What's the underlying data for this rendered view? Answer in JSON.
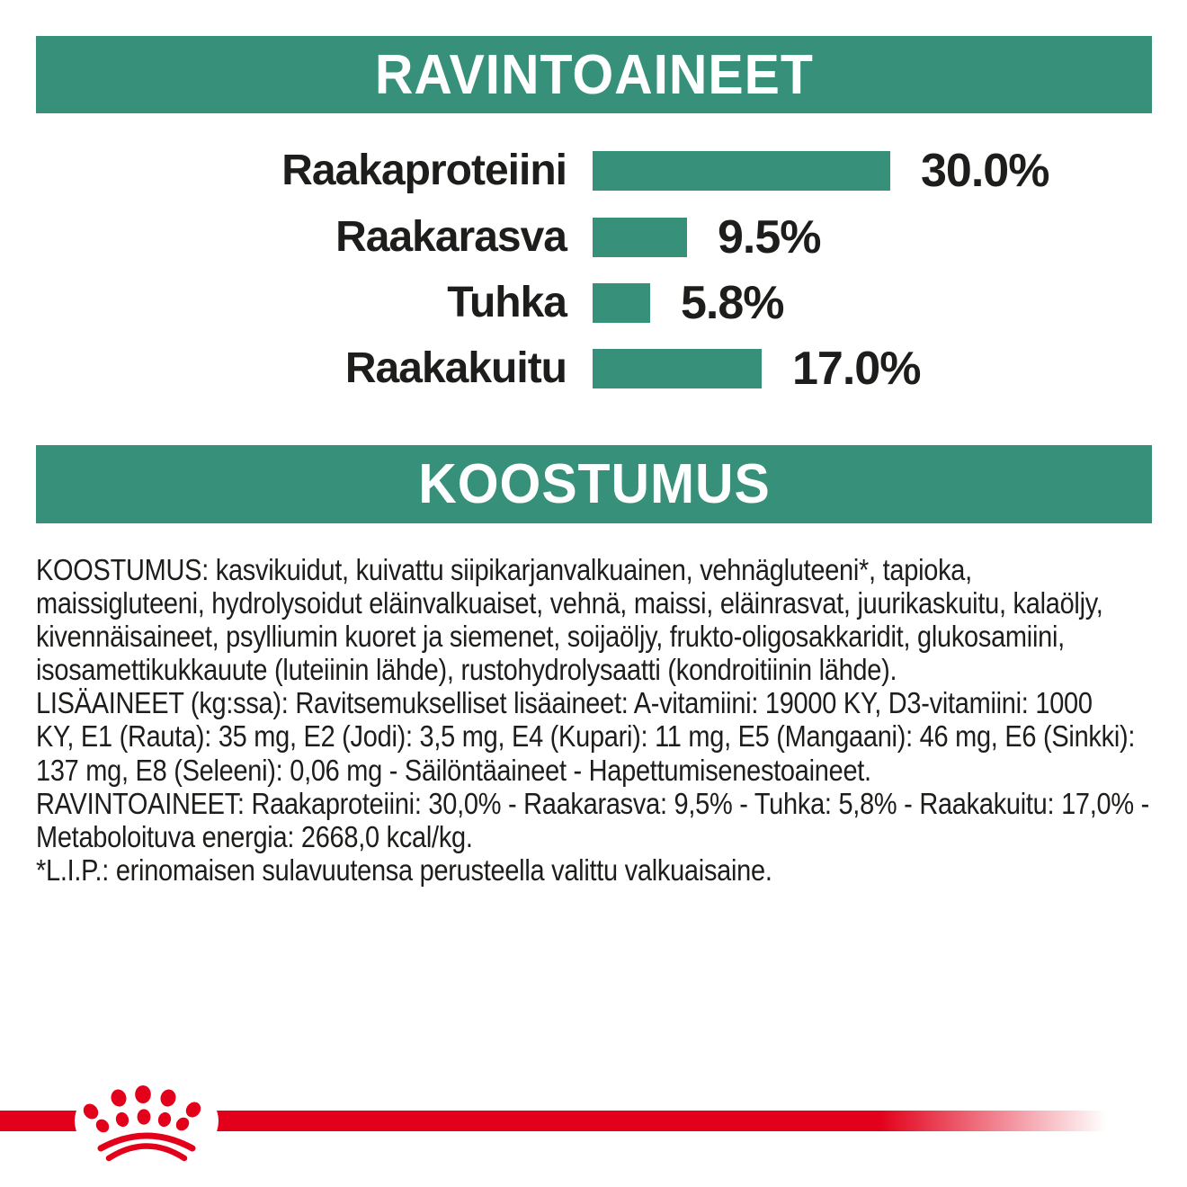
{
  "colors": {
    "brand_green": "#37907a",
    "brand_red": "#e2001a",
    "text": "#1d1d1b",
    "background": "#ffffff"
  },
  "headers": {
    "nutrients": "RAVINTOAINEET",
    "composition": "KOOSTUMUS"
  },
  "chart_data": {
    "type": "bar",
    "orientation": "horizontal",
    "categories": [
      "Raakaproteiini",
      "Raakarasva",
      "Tuhka",
      "Raakakuitu"
    ],
    "values": [
      30.0,
      9.5,
      5.8,
      17.0
    ],
    "value_labels": [
      "30.0%",
      "9.5%",
      "5.8%",
      "17.0%"
    ],
    "unit": "%",
    "xlim": [
      0,
      30
    ],
    "bar_color": "#37907a",
    "grid": false,
    "legend": "none"
  },
  "composition": {
    "lines": [
      "KOOSTUMUS: kasvikuidut, kuivattu siipikarjanvalkuainen, vehnägluteeni*, tapioka,",
      "maissigluteeni, hydrolysoidut eläinvalkuaiset, vehnä, maissi, eläinrasvat, juurikaskuitu, kalaöljy,",
      "kivennäisaineet, psylliumin kuoret ja siemenet, soijaöljy, frukto-oligosakkaridit, glukosamiini,",
      "isosamettikukkauute (luteiinin lähde), rustohydrolysaatti (kondroitiinin lähde).",
      "LISÄAINEET (kg:ssa): Ravitsemukselliset lisäaineet: A-vitamiini: 19000 KY, D3-vitamiini: 1000",
      "KY, E1 (Rauta): 35 mg, E2 (Jodi): 3,5 mg, E4 (Kupari): 11 mg, E5 (Mangaani): 46 mg, E6 (Sinkki):",
      "137 mg, E8 (Seleeni): 0,06 mg - Säilöntäaineet - Hapettumisenestoaineet.",
      "RAVINTOAINEET: Raakaproteiini: 30,0% - Raakarasva: 9,5% - Tuhka: 5,8% - Raakakuitu: 17,0% -",
      "Metaboloituva energia: 2668,0 kcal/kg.",
      "*L.I.P.: erinomaisen sulavuutensa perusteella valittu valkuaisaine."
    ]
  },
  "footer": {
    "logo": "royal-canin-crown"
  }
}
